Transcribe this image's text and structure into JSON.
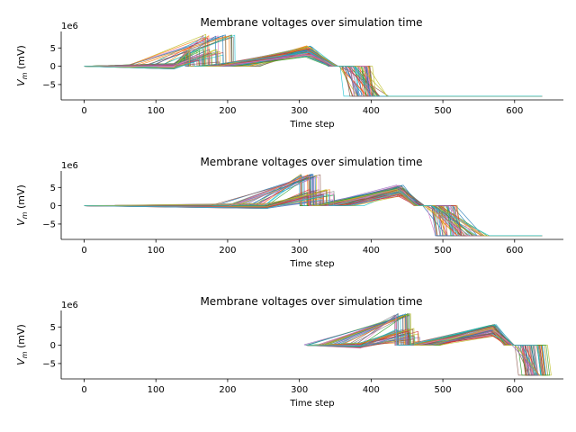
{
  "chart_data": [
    {
      "type": "line",
      "title": "Membrane voltages over simulation time",
      "xlabel": "Time step",
      "ylabel": "V_m (mV)",
      "offset_label": "1e6",
      "xlim": [
        -32,
        668
      ],
      "ylim": [
        -9.2,
        9.5
      ],
      "xticks": [
        0,
        100,
        200,
        300,
        400,
        500,
        600
      ],
      "yticks": [
        -5,
        0,
        5
      ],
      "n_traces": 60,
      "first_ramp_start": 0,
      "first_ramp_end": 125,
      "upper_peak_range": [
        165,
        210
      ],
      "mid_peak_range": [
        140,
        195
      ],
      "second_ramp_end": 318,
      "second_peak_value": 4.2,
      "decline_start": 340,
      "decline_end_range": [
        350,
        425
      ],
      "floor_value": -8.2,
      "x_end": 638
    },
    {
      "type": "line",
      "title": "Membrane voltages over simulation time",
      "xlabel": "Time step",
      "ylabel": "V_m (mV)",
      "offset_label": "1e6",
      "xlim": [
        -32,
        668
      ],
      "ylim": [
        -9.2,
        9.5
      ],
      "xticks": [
        0,
        100,
        200,
        300,
        400,
        500,
        600
      ],
      "yticks": [
        -5,
        0,
        5
      ],
      "n_traces": 60,
      "first_ramp_start": 0,
      "first_ramp_end": 255,
      "upper_peak_range": [
        300,
        330
      ],
      "mid_peak_range": [
        300,
        350
      ],
      "second_ramp_end": 445,
      "second_peak_value": 4.2,
      "decline_start": 460,
      "decline_end_range": [
        480,
        565
      ],
      "floor_value": -8.2,
      "x_end": 638
    },
    {
      "type": "line",
      "title": "Membrane voltages over simulation time",
      "xlabel": "Time step",
      "ylabel": "V_m (mV)",
      "offset_label": "1e6",
      "xlim": [
        -32,
        668
      ],
      "ylim": [
        -9.2,
        9.5
      ],
      "xticks": [
        0,
        100,
        200,
        300,
        400,
        500,
        600
      ],
      "yticks": [
        -5,
        0,
        5
      ],
      "n_traces": 60,
      "first_ramp_start": 310,
      "first_ramp_end": 385,
      "upper_peak_range": [
        432,
        455
      ],
      "mid_peak_range": [
        432,
        468
      ],
      "second_ramp_end": 575,
      "second_peak_value": 4.2,
      "decline_start": 585,
      "decline_end_range": [
        600,
        640
      ],
      "floor_value": -8.2,
      "x_end": 638
    }
  ],
  "colors": [
    "#1f77b4",
    "#ff7f0e",
    "#2ca02c",
    "#d62728",
    "#9467bd",
    "#8c564b",
    "#e377c2",
    "#7f7f7f",
    "#bcbd22",
    "#17becf"
  ]
}
